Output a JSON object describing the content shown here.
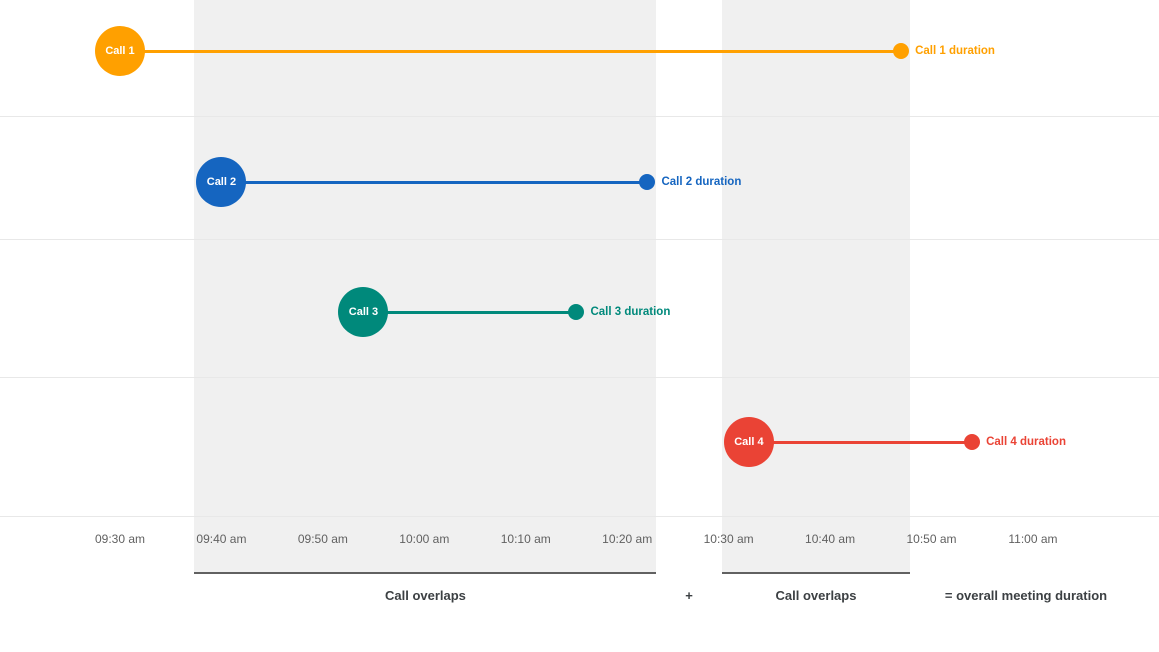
{
  "chart_data": {
    "type": "timeline",
    "x_axis": {
      "tick_labels": [
        "09:30 am",
        "09:40 am",
        "09:50 am",
        "10:00 am",
        "10:10 am",
        "10:20 am",
        "10:30 am",
        "10:40 am",
        "10:50 am",
        "11:00 am"
      ]
    },
    "calls": [
      {
        "name": "Call 1",
        "duration_label": "Call 1 duration",
        "color": "#FFA000",
        "start": "09:30 am",
        "end": "10:47 am"
      },
      {
        "name": "Call 2",
        "duration_label": "Call 2 duration",
        "color": "#1565C0",
        "start": "09:40 am",
        "end": "10:22 am"
      },
      {
        "name": "Call 3",
        "duration_label": "Call 3 duration",
        "color": "#00897B",
        "start": "09:54 am",
        "end": "10:15 am"
      },
      {
        "name": "Call 4",
        "duration_label": "Call 4 duration",
        "color": "#EA4335",
        "start": "10:32 am",
        "end": "10:54 am"
      }
    ],
    "overlap_regions": [
      {
        "label": "Call overlaps",
        "start": "09:40 am",
        "end": "10:22 am"
      },
      {
        "label": "Call overlaps",
        "start": "10:32 am",
        "end": "10:47 am"
      }
    ],
    "annotations": {
      "plus": "+",
      "equals": "= overall meeting duration"
    },
    "colors": {
      "region_fill": "#f0f0f0",
      "region_underline": "#616161",
      "gridline": "#e8e8e8",
      "tick_text": "#616161",
      "footer_text": "#3c4043"
    }
  }
}
